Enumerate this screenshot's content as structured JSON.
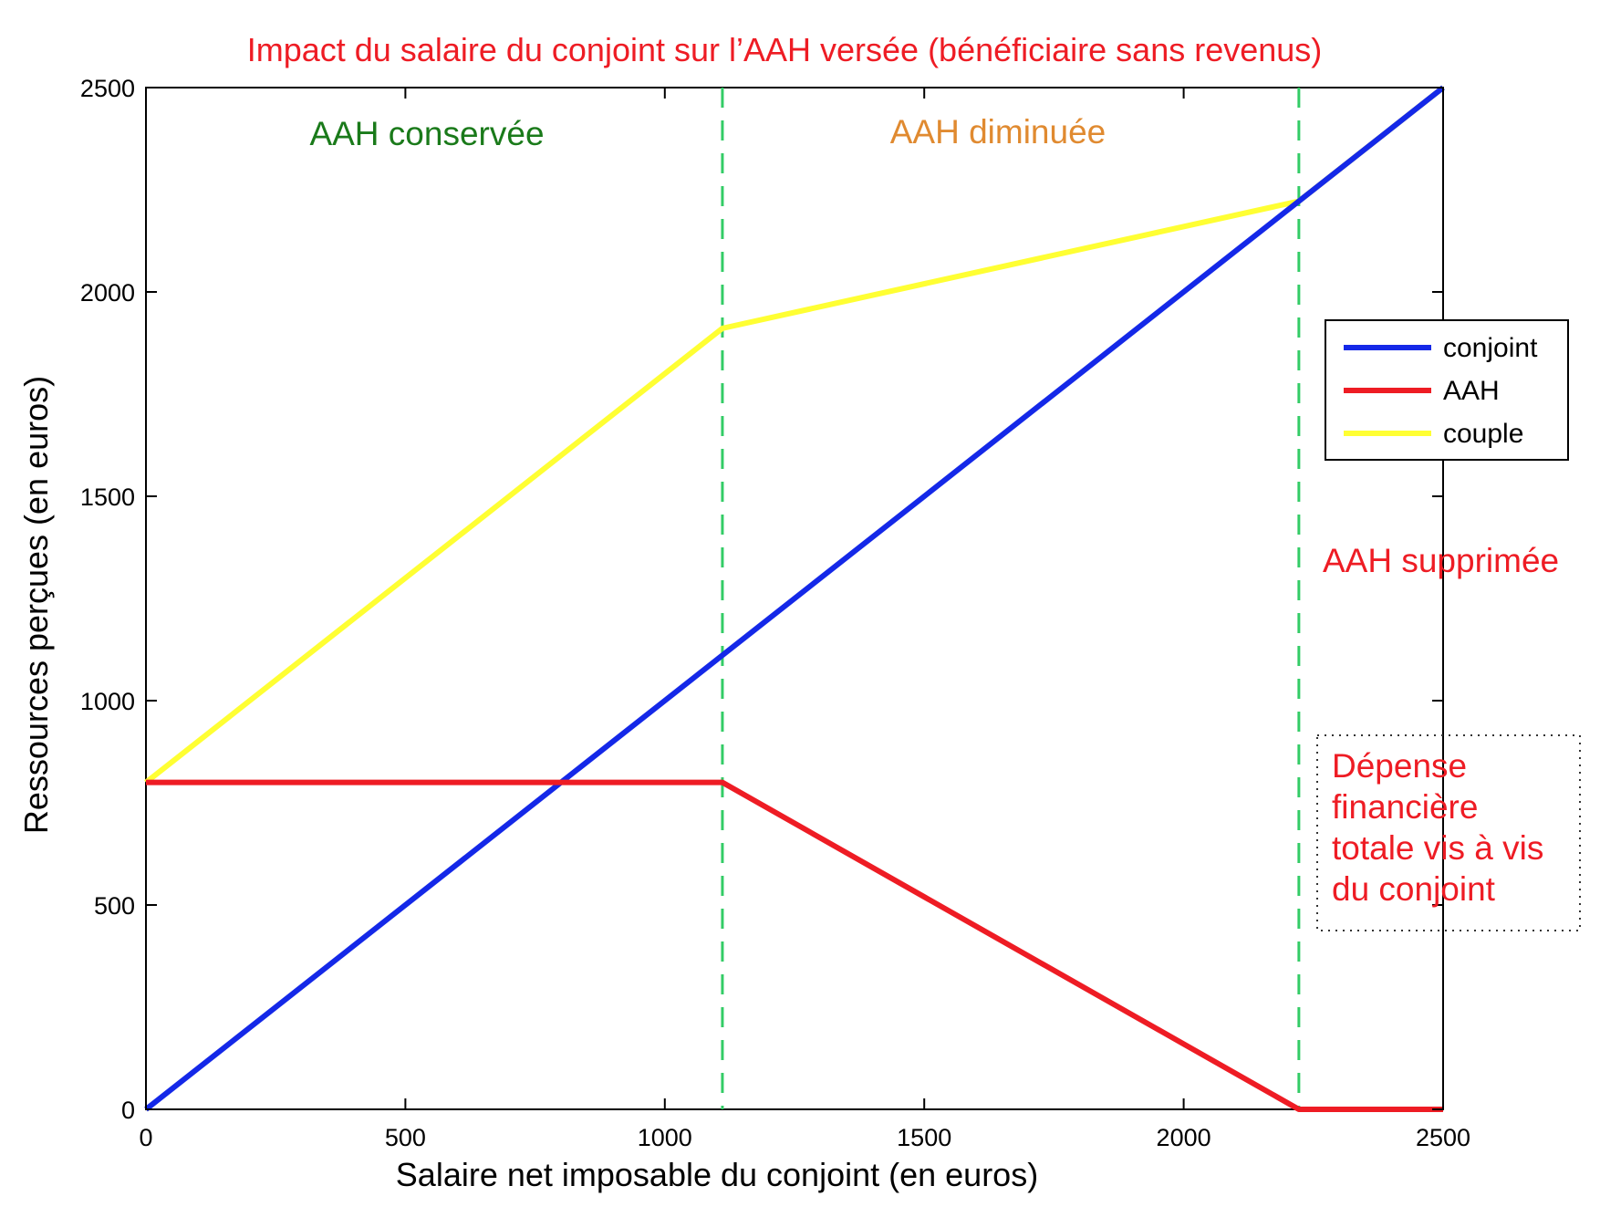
{
  "chart_data": {
    "type": "line",
    "title": "Impact du salaire du conjoint sur l’AAH versée (bénéficiaire sans revenus)",
    "xlabel": "Salaire net imposable du conjoint (en euros)",
    "ylabel": "Ressources perçues (en euros)",
    "xlim": [
      0,
      2500
    ],
    "ylim": [
      0,
      2500
    ],
    "xticks": [
      0,
      500,
      1000,
      1500,
      2000,
      2500
    ],
    "yticks": [
      0,
      500,
      1000,
      1500,
      2000,
      2500
    ],
    "grid": false,
    "legend_position": "right",
    "series": [
      {
        "name": "conjoint",
        "color": "#1428e8",
        "x": [
          0,
          2500
        ],
        "y": [
          0,
          2500
        ]
      },
      {
        "name": "AAH",
        "color": "#ee1c24",
        "x": [
          0,
          1111,
          2222,
          2500
        ],
        "y": [
          800,
          800,
          0,
          0
        ]
      },
      {
        "name": "couple",
        "color": "#ffff33",
        "x": [
          0,
          1111,
          2222,
          2500
        ],
        "y": [
          800,
          1911,
          2222,
          2500
        ]
      }
    ],
    "vlines": [
      {
        "x": 1111,
        "color": "#33cc66",
        "style": "dashed"
      },
      {
        "x": 2222,
        "color": "#33cc66",
        "style": "dashed"
      }
    ],
    "annotations": [
      {
        "text": "AAH conservée",
        "color": "#1a7a1a"
      },
      {
        "text": "AAH diminuée",
        "color": "#e08a30"
      },
      {
        "text": "AAH supprimée",
        "color": "#ee1c24"
      },
      {
        "text_lines": [
          "Dépense",
          "financière",
          "totale vis à vis",
          "du conjoint"
        ],
        "color": "#ee1c24"
      }
    ]
  }
}
